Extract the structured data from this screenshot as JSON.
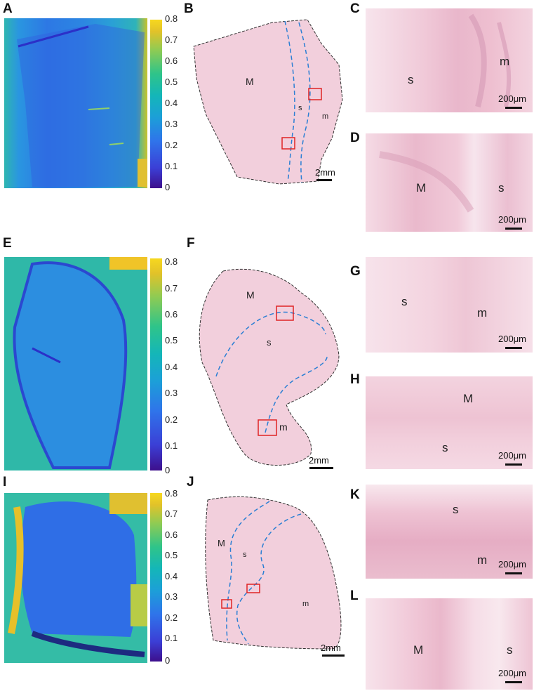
{
  "rows": [
    {
      "letters": {
        "heat": "A",
        "overview": "B",
        "zoom1": "C",
        "zoom2": "D"
      },
      "colorbar_ticks": [
        "0.8",
        "0.7",
        "0.6",
        "0.5",
        "0.4",
        "0.3",
        "0.2",
        "0.1",
        "0"
      ],
      "overview_labels": {
        "muscle": "M",
        "submucosa": "s",
        "mucosa": "m"
      },
      "overview_scale": "2mm",
      "zoom1": {
        "labels": [
          "s",
          "m"
        ],
        "scale": "200μm"
      },
      "zoom2": {
        "labels": [
          "M",
          "s"
        ],
        "scale": "200μm"
      }
    },
    {
      "letters": {
        "heat": "E",
        "overview": "F",
        "zoom1": "G",
        "zoom2": "H"
      },
      "colorbar_ticks": [
        "0.8",
        "0.7",
        "0.6",
        "0.5",
        "0.4",
        "0.3",
        "0.2",
        "0.1",
        "0"
      ],
      "overview_labels": {
        "muscle": "M",
        "submucosa": "s",
        "mucosa": "m"
      },
      "overview_scale": "2mm",
      "zoom1": {
        "labels": [
          "s",
          "m"
        ],
        "scale": "200μm"
      },
      "zoom2": {
        "labels": [
          "M",
          "s"
        ],
        "scale": "200μm"
      }
    },
    {
      "letters": {
        "heat": "I",
        "overview": "J",
        "zoom1": "K",
        "zoom2": "L"
      },
      "colorbar_ticks": [
        "0.8",
        "0.7",
        "0.6",
        "0.5",
        "0.4",
        "0.3",
        "0.2",
        "0.1",
        "0"
      ],
      "overview_labels": {
        "muscle": "M",
        "submucosa": "s",
        "mucosa": "m"
      },
      "overview_scale": "2mm",
      "zoom1": {
        "labels": [
          "s",
          "m"
        ],
        "scale": "200μm"
      },
      "zoom2": {
        "labels": [
          "M",
          "s"
        ],
        "scale": "200μm"
      }
    }
  ],
  "colors": {
    "outline": "#333333",
    "boundary": "#2a7fd4",
    "roi_box": "#e02424",
    "tissue": "#f2cfdc"
  }
}
